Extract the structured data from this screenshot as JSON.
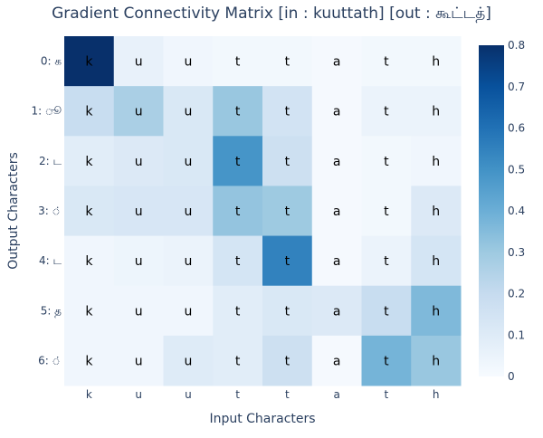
{
  "chart_data": {
    "type": "heatmap",
    "title": "Gradient Connectivity Matrix [in : kuuttath] [out : கூட்டத்]",
    "xlabel": "Input Characters",
    "ylabel": "Output Characters",
    "x_labels": [
      "k",
      "u",
      "u",
      "t",
      "t",
      "a",
      "t",
      "h"
    ],
    "y_labels": [
      "0: க",
      "1: ூ",
      "2: ட",
      "3: ்",
      "4: ட",
      "5: த",
      "6: ்"
    ],
    "values": [
      [
        0.8,
        0.06,
        0.03,
        0.02,
        0.02,
        0.01,
        0.02,
        0.02
      ],
      [
        0.19,
        0.27,
        0.12,
        0.31,
        0.15,
        0.01,
        0.05,
        0.05
      ],
      [
        0.09,
        0.11,
        0.12,
        0.49,
        0.17,
        0.01,
        0.02,
        0.03
      ],
      [
        0.12,
        0.13,
        0.13,
        0.32,
        0.3,
        0.01,
        0.02,
        0.11
      ],
      [
        0.03,
        0.04,
        0.05,
        0.14,
        0.55,
        0.01,
        0.05,
        0.14
      ],
      [
        0.03,
        0.03,
        0.03,
        0.09,
        0.12,
        0.11,
        0.19,
        0.36
      ],
      [
        0.03,
        0.03,
        0.1,
        0.09,
        0.17,
        0.01,
        0.38,
        0.31
      ]
    ],
    "colorscale": {
      "name": "Blues",
      "min": 0,
      "max": 0.8,
      "stops": [
        [
          0.0,
          "#f7fbff"
        ],
        [
          0.125,
          "#deebf7"
        ],
        [
          0.25,
          "#c6dbef"
        ],
        [
          0.375,
          "#9ecae1"
        ],
        [
          0.5,
          "#6baed6"
        ],
        [
          0.625,
          "#4292c6"
        ],
        [
          0.75,
          "#2171b5"
        ],
        [
          0.875,
          "#08519c"
        ],
        [
          1.0,
          "#08306b"
        ]
      ]
    },
    "colorbar_ticks": [
      0,
      0.1,
      0.2,
      0.3,
      0.4,
      0.5,
      0.6,
      0.7,
      0.8
    ],
    "text_color": "#000000",
    "axis_text_color": "#2a3f5f"
  }
}
